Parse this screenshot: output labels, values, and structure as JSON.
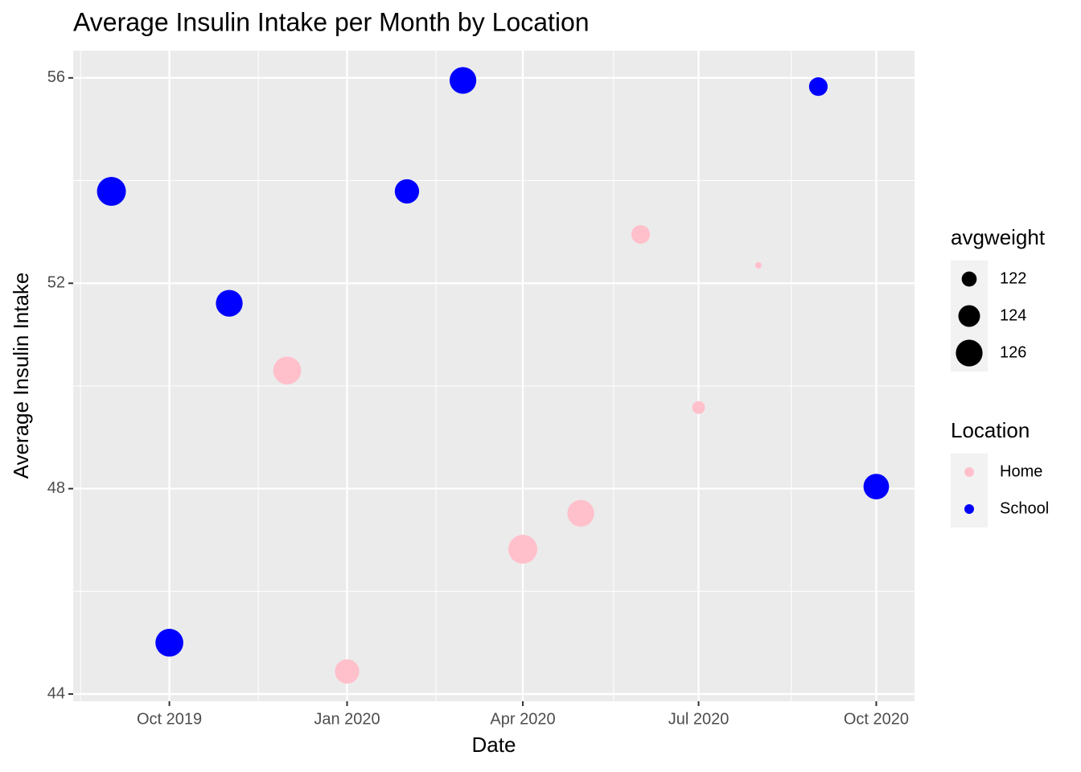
{
  "chart_data": {
    "type": "scatter",
    "title": "Average Insulin Intake per Month by Location",
    "x_label": "Date",
    "y_label": "Average Insulin Intake",
    "xlim": [
      "2019-09",
      "2020-10"
    ],
    "xticks": [
      {
        "value": "2019-10",
        "label": "Oct 2019"
      },
      {
        "value": "2020-01",
        "label": "Jan 2020"
      },
      {
        "value": "2020-04",
        "label": "Apr 2020"
      },
      {
        "value": "2020-07",
        "label": "Jul 2020"
      },
      {
        "value": "2020-10",
        "label": "Oct 2020"
      }
    ],
    "ylim": [
      43.86,
      56.53
    ],
    "yticks": [
      44,
      48,
      52,
      56
    ],
    "grid": true,
    "legend_position": "right",
    "legend_title": "Location",
    "size_legend": {
      "title": "avgweight",
      "values": [
        122,
        124,
        126
      ]
    },
    "series": [
      {
        "name": "Home",
        "color": "#ffc0cb",
        "x": [
          "2019-12",
          "2020-01",
          "2020-04",
          "2020-05",
          "2020-06",
          "2020-07",
          "2020-08"
        ],
        "values": [
          50.3,
          44.44,
          46.82,
          47.52,
          52.95,
          49.58,
          52.35
        ],
        "sizes": [
          126.5,
          125,
          127,
          126,
          123,
          121.5,
          120.5
        ]
      },
      {
        "name": "School",
        "color": "#0000ff",
        "x": [
          "2019-09",
          "2019-10",
          "2019-11",
          "2020-02",
          "2020-03",
          "2020-09",
          "2020-10"
        ],
        "values": [
          53.79,
          45.0,
          51.61,
          53.79,
          55.95,
          55.83,
          48.04
        ],
        "sizes": [
          127,
          126.5,
          126,
          125,
          126,
          123,
          125.5
        ]
      }
    ]
  }
}
